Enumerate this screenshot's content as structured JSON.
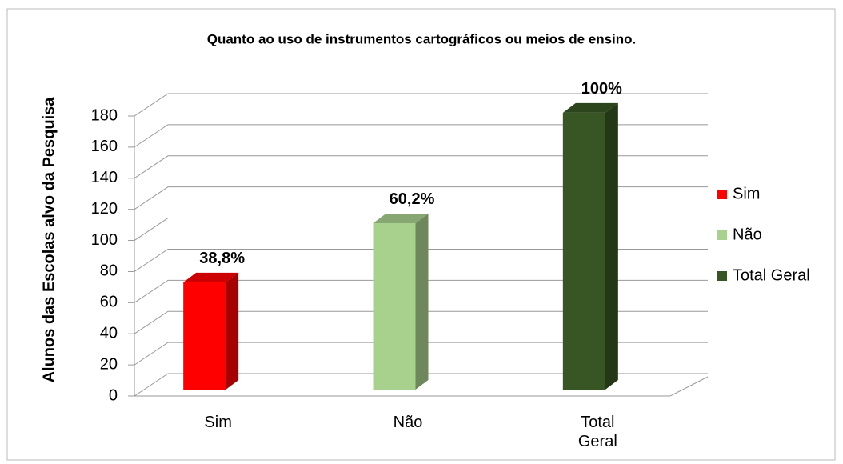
{
  "chart_data": {
    "type": "bar3d",
    "title": "Quanto ao uso de instrumentos cartográficos ou meios de ensino.",
    "y_label": "Alunos das  Escolas alvo da Pesquisa",
    "categories": [
      "Sim",
      "Não",
      "Total Geral"
    ],
    "series": [
      {
        "name": "Sim",
        "color": "#ff0000",
        "values": [
          69,
          null,
          null
        ],
        "value_labels": [
          "38,8%",
          null,
          null
        ]
      },
      {
        "name": "Não",
        "color": "#a9d18e",
        "values": [
          null,
          107,
          null
        ],
        "value_labels": [
          null,
          "60,2%",
          null
        ]
      },
      {
        "name": "Total Geral",
        "color": "#375623",
        "values": [
          null,
          null,
          178
        ],
        "value_labels": [
          null,
          null,
          "100%"
        ]
      }
    ],
    "ylim": [
      0,
      180
    ],
    "yticks": [
      0,
      20,
      40,
      60,
      80,
      100,
      120,
      140,
      160,
      180
    ],
    "grid": true,
    "legend": "right"
  }
}
